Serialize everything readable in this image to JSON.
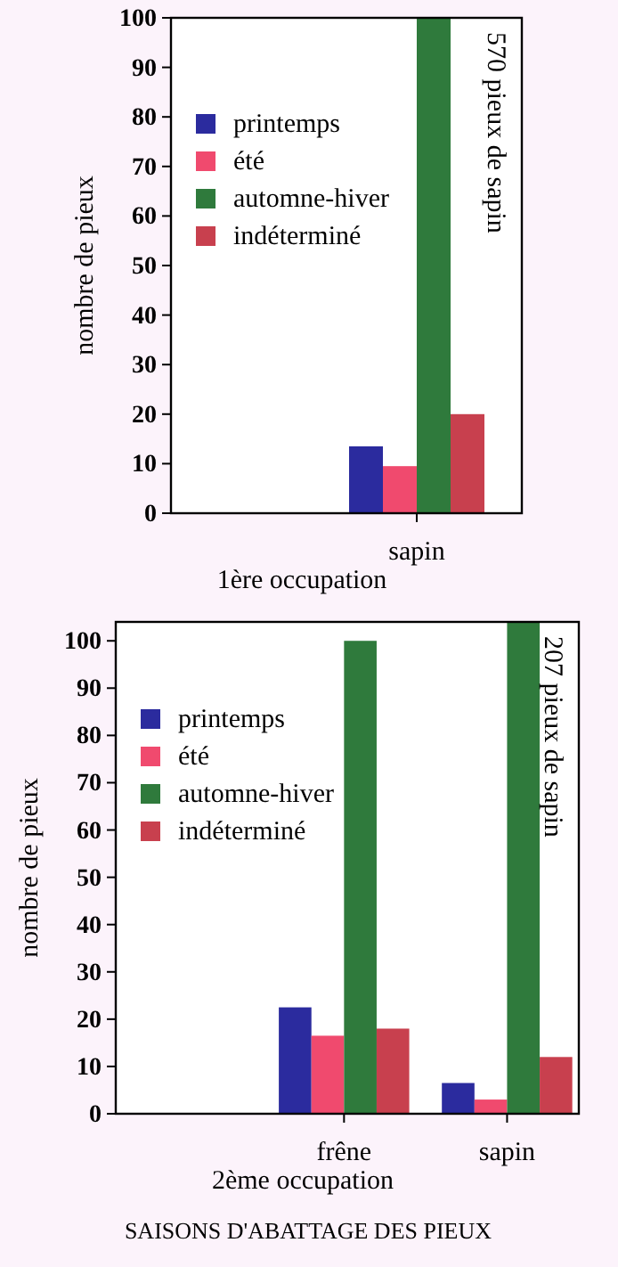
{
  "chart_data": [
    {
      "type": "bar",
      "xlabel": "1ère occupation",
      "ylabel": "nombre de pieux",
      "categories": [
        "sapin"
      ],
      "series": [
        {
          "name": "printemps",
          "color": "#2b2b9e",
          "values": [
            13.5
          ]
        },
        {
          "name": "été",
          "color": "#f04a6e",
          "values": [
            9.5
          ]
        },
        {
          "name": "automne-hiver",
          "color": "#2f7a3c",
          "values": [
            100
          ]
        },
        {
          "name": "indéterminé",
          "color": "#c8404e",
          "values": [
            20
          ]
        }
      ],
      "ylim": [
        0,
        100
      ],
      "yticks": [
        0,
        10,
        20,
        30,
        40,
        50,
        60,
        70,
        80,
        90,
        100
      ],
      "grid": false,
      "legend": "top left",
      "annotations": [
        "570 pieux de sapin"
      ]
    },
    {
      "type": "bar",
      "xlabel": "2ème occupation",
      "ylabel": "nombre de pieux",
      "categories": [
        null,
        "frêne",
        "sapin"
      ],
      "series": [
        {
          "name": "printemps",
          "color": "#2b2b9e",
          "values": [
            0,
            22.5,
            6.5
          ]
        },
        {
          "name": "été",
          "color": "#f04a6e",
          "values": [
            0,
            16.5,
            3
          ]
        },
        {
          "name": "automne-hiver",
          "color": "#2f7a3c",
          "values": [
            0,
            100,
            104
          ]
        },
        {
          "name": "indéterminé",
          "color": "#c8404e",
          "values": [
            0,
            18,
            12
          ]
        }
      ],
      "ylim": [
        0,
        104
      ],
      "yticks": [
        0,
        10,
        20,
        30,
        40,
        50,
        60,
        70,
        80,
        90,
        100
      ],
      "grid": false,
      "legend": "top left",
      "annotations": [
        "207 pieux de sapin",
        "SAISONS D'ABATTAGE DES PIEUX"
      ]
    }
  ]
}
